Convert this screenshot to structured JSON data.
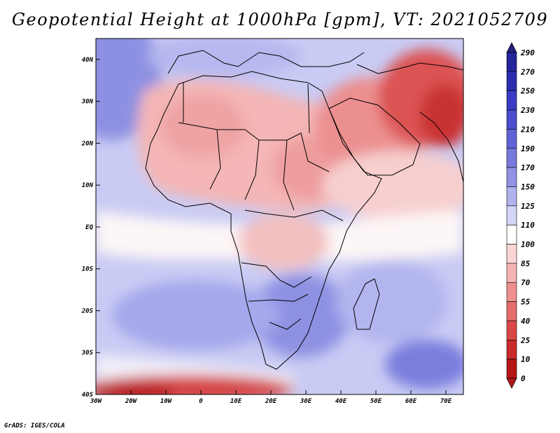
{
  "title": "Geopotential Height at 1000hPa [gpm], VT: 2021052709",
  "footer": "GrADS: IGES/COLA",
  "map": {
    "variable": "Geopotential Height",
    "level": "1000hPa",
    "units": "gpm",
    "valid_time": "2021052709",
    "lon_range": [
      -30,
      75
    ],
    "lat_range": [
      -40,
      45
    ],
    "lon_ticks": [
      {
        "lon": -30,
        "label": "30W"
      },
      {
        "lon": -20,
        "label": "20W"
      },
      {
        "lon": -10,
        "label": "10W"
      },
      {
        "lon": 0,
        "label": "0"
      },
      {
        "lon": 10,
        "label": "10E"
      },
      {
        "lon": 20,
        "label": "20E"
      },
      {
        "lon": 30,
        "label": "30E"
      },
      {
        "lon": 40,
        "label": "40E"
      },
      {
        "lon": 50,
        "label": "50E"
      },
      {
        "lon": 60,
        "label": "60E"
      },
      {
        "lon": 70,
        "label": "70E"
      }
    ],
    "lat_ticks": [
      {
        "lat": 40,
        "label": "40N"
      },
      {
        "lat": 30,
        "label": "30N"
      },
      {
        "lat": 20,
        "label": "20N"
      },
      {
        "lat": 10,
        "label": "10N"
      },
      {
        "lat": 0,
        "label": "EQ"
      },
      {
        "lat": -10,
        "label": "10S"
      },
      {
        "lat": -20,
        "label": "20S"
      },
      {
        "lat": -30,
        "label": "30S"
      },
      {
        "lat": -40,
        "label": "40S"
      }
    ],
    "regions": [
      {
        "name": "north-atlantic-high",
        "level": 170
      },
      {
        "name": "mediterranean-ridge",
        "level": 150
      },
      {
        "name": "sahara-heat-low",
        "level": 85
      },
      {
        "name": "arabia-low",
        "level": 70
      },
      {
        "name": "pakistan-low",
        "level": 25
      },
      {
        "name": "southern-africa-high",
        "level": 170
      },
      {
        "name": "south-atlantic-high",
        "level": 150
      },
      {
        "name": "indian-ocean-high",
        "level": 190
      },
      {
        "name": "southern-ocean-low",
        "level": 25
      }
    ]
  },
  "colorbar": {
    "levels": [
      "290",
      "270",
      "250",
      "230",
      "210",
      "190",
      "170",
      "150",
      "125",
      "110",
      "100",
      "85",
      "70",
      "55",
      "40",
      "25",
      "10",
      "0"
    ],
    "colors": [
      "#23249a",
      "#2b2db0",
      "#3a3cc4",
      "#4b4ecf",
      "#6063d6",
      "#7779dd",
      "#9194e5",
      "#b0b2ee",
      "#d4d5f7",
      "#ffffff",
      "#fbd5d5",
      "#f5b3b3",
      "#ef9090",
      "#e56c6c",
      "#d94848",
      "#c92a2a",
      "#b41616"
    ],
    "top_arrow_color": "#20207e",
    "bottom_arrow_color": "#b41616"
  }
}
